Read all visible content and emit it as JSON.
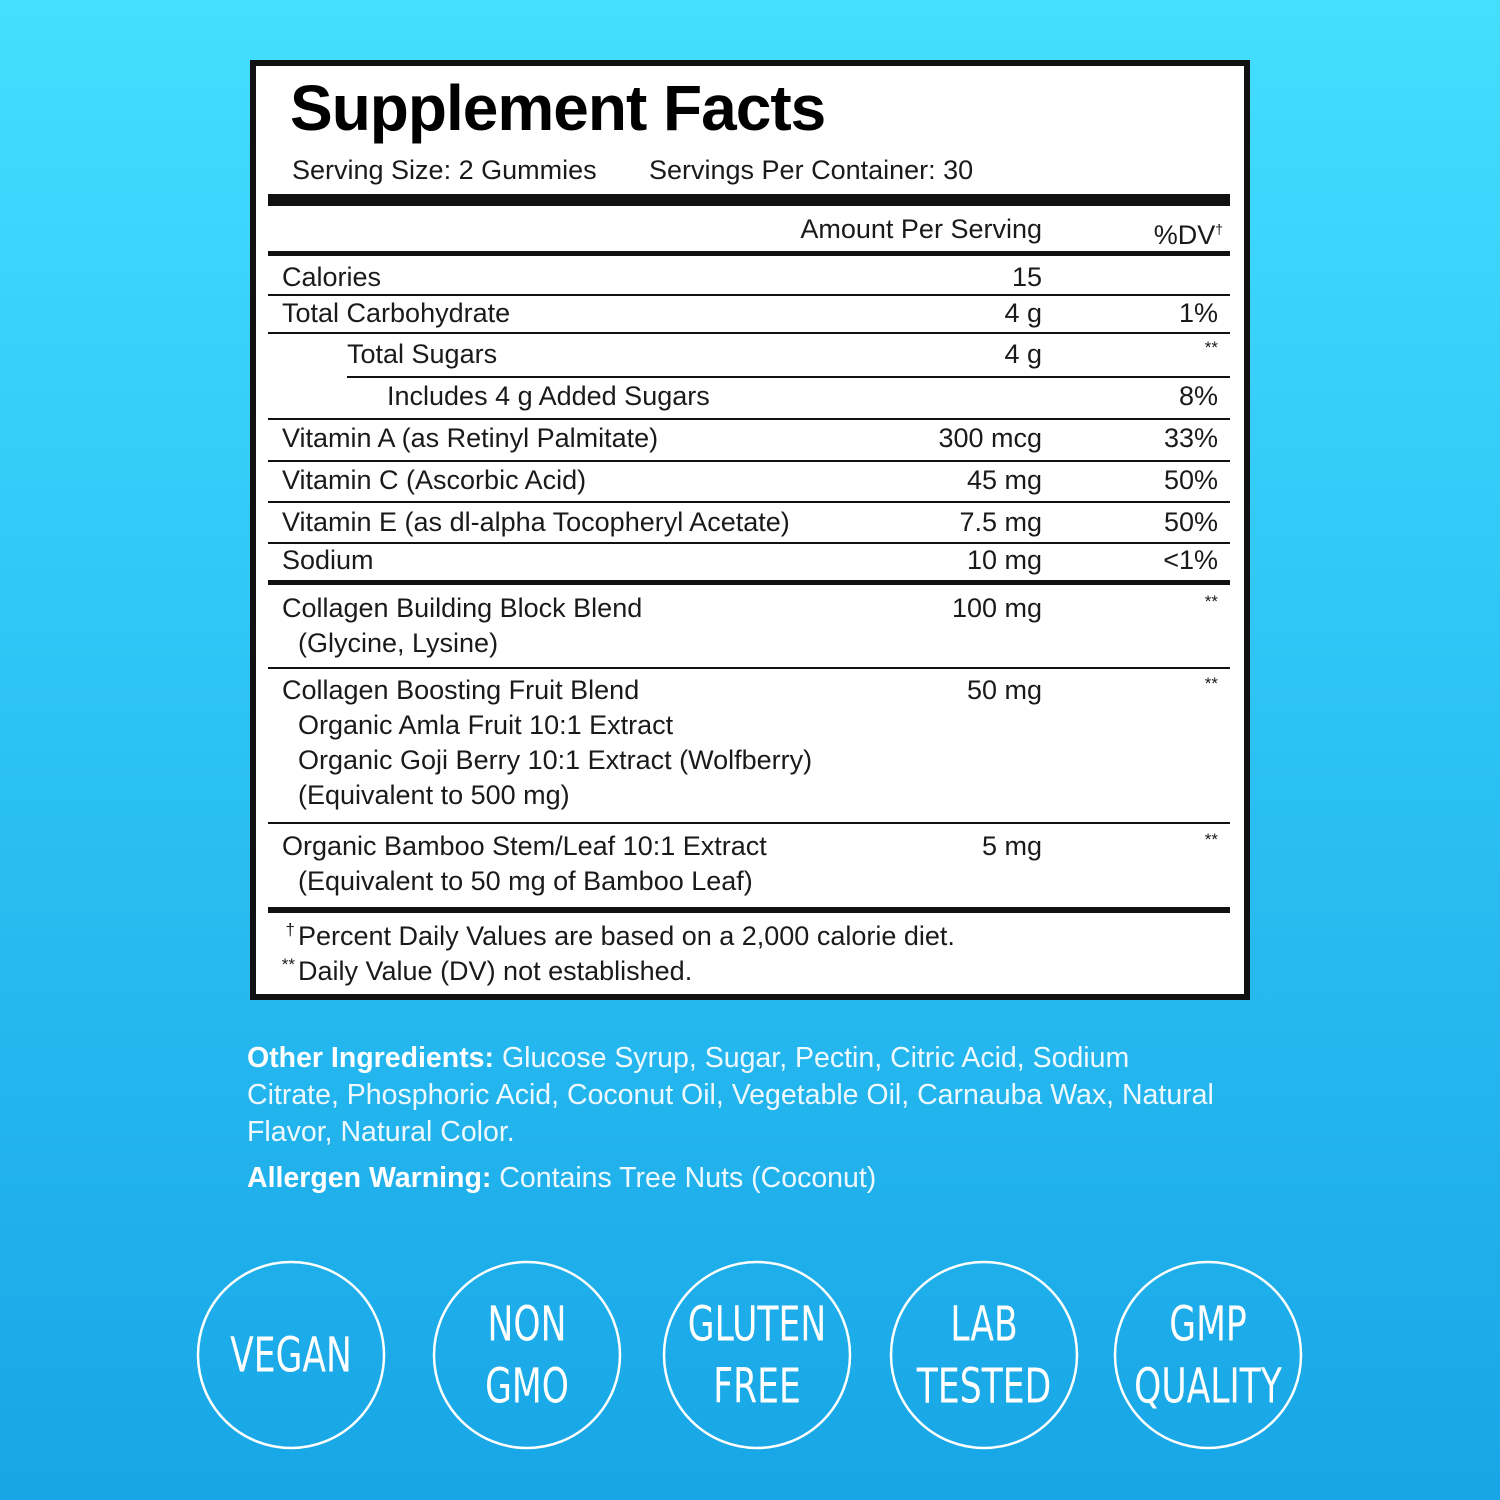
{
  "title": "Supplement Facts",
  "serving": [
    "Serving Size: 2 Gummies",
    "Servings Per Container: 30"
  ],
  "header": {
    "amount": "Amount Per Serving",
    "dv": "%DV",
    "dv_mark": "†"
  },
  "rows": [
    {
      "name": "Calories",
      "amount": "15"
    },
    {
      "name": "Total Carbohydrate",
      "amount": "4 g",
      "dv": "1%"
    },
    {
      "name": "Total Sugars",
      "amount": "4 g",
      "dv": "**"
    },
    {
      "name": "Includes 4 g Added Sugars",
      "dv": "8%"
    },
    {
      "name": "Vitamin A (as Retinyl Palmitate)",
      "amount": "300 mcg",
      "dv": "33%"
    },
    {
      "name": "Vitamin C (Ascorbic Acid)",
      "amount": "45 mg",
      "dv": "50%"
    },
    {
      "name": "Vitamin E (as dl-alpha Tocopheryl Acetate)",
      "amount": "7.5 mg",
      "dv": "50%"
    },
    {
      "name": "Sodium",
      "amount": "10 mg",
      "dv": "<1%"
    },
    {
      "name": "Collagen Building Block Blend",
      "sub": [
        "(Glycine, Lysine)"
      ],
      "amount": "100 mg",
      "dv": "**"
    },
    {
      "name": "Collagen Boosting Fruit Blend",
      "sub": [
        "Organic Amla Fruit 10:1 Extract",
        "Organic Goji Berry 10:1 Extract (Wolfberry)",
        "(Equivalent to 500 mg)"
      ],
      "amount": "50 mg",
      "dv": "**"
    },
    {
      "name": "Organic Bamboo Stem/Leaf 10:1 Extract",
      "sub": [
        "(Equivalent to 50 mg of Bamboo Leaf)"
      ],
      "amount": "5 mg",
      "dv": "**"
    }
  ],
  "footnotes": [
    {
      "mark": "†",
      "text": "Percent Daily Values are based on a 2,000 calorie diet."
    },
    {
      "mark": "**",
      "text": "Daily Value (DV) not established."
    }
  ],
  "other_ingredients": {
    "label": "Other Ingredients:",
    "text": "Glucose Syrup, Sugar, Pectin, Citric Acid, Sodium Citrate, Phosphoric Acid, Coconut Oil, Vegetable Oil, Carnauba Wax, Natural Flavor, Natural Color."
  },
  "allergen": {
    "label": "Allergen Warning:",
    "text": "Contains Tree Nuts (Coconut)"
  },
  "badges": [
    [
      "VEGAN"
    ],
    [
      "NON",
      "GMO"
    ],
    [
      "GLUTEN",
      "FREE"
    ],
    [
      "LAB",
      "TESTED"
    ],
    [
      "GMP",
      "QUALITY"
    ]
  ]
}
